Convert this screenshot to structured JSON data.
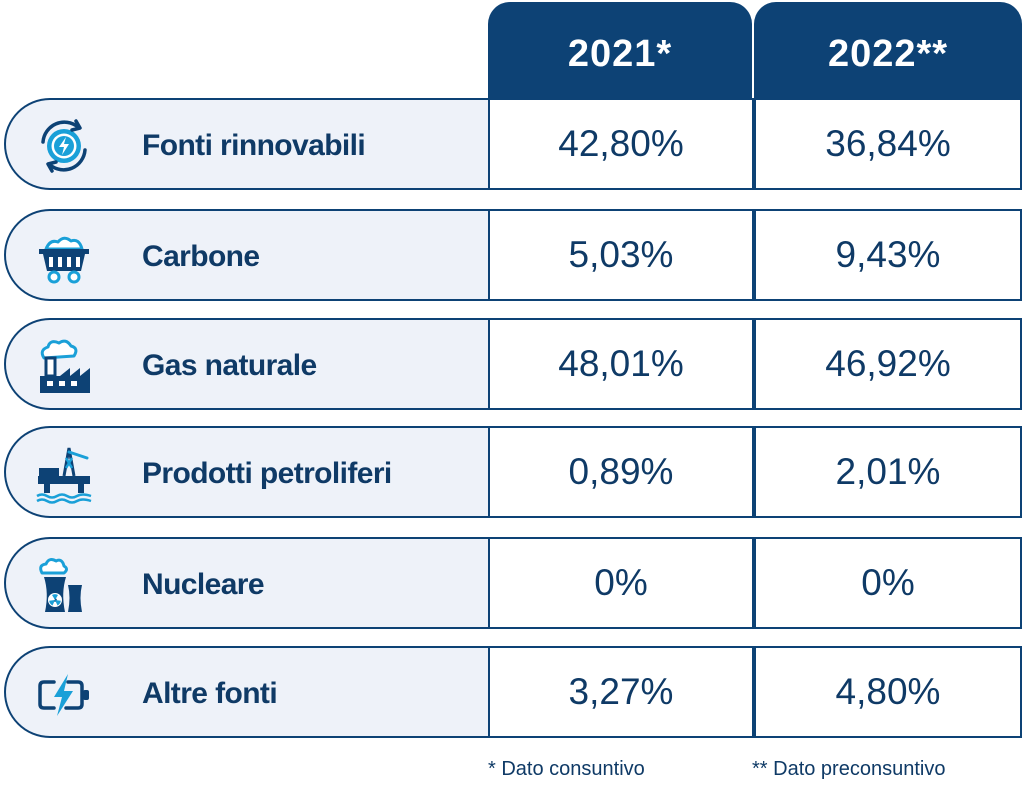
{
  "chart_data": {
    "type": "table",
    "columns": [
      "2021*",
      "2022**"
    ],
    "rows": [
      {
        "label": "Fonti rinnovabili",
        "icon": "renewable-energy-icon",
        "values": [
          "42,80%",
          "36,84%"
        ]
      },
      {
        "label": "Carbone",
        "icon": "coal-cart-icon",
        "values": [
          "5,03%",
          "9,43%"
        ]
      },
      {
        "label": "Gas naturale",
        "icon": "gas-factory-icon",
        "values": [
          "48,01%",
          "46,92%"
        ]
      },
      {
        "label": "Prodotti petroliferi",
        "icon": "oil-platform-icon",
        "values": [
          "0,89%",
          "2,01%"
        ]
      },
      {
        "label": "Nucleare",
        "icon": "nuclear-plant-icon",
        "values": [
          "0%",
          "0%"
        ]
      },
      {
        "label": "Altre fonti",
        "icon": "battery-bolt-icon",
        "values": [
          "3,27%",
          "4,80%"
        ]
      }
    ],
    "footnotes": [
      "* Dato consuntivo",
      "** Dato preconsuntivo"
    ]
  },
  "colors": {
    "header_bg": "#0d4275",
    "text": "#0f3a66",
    "icon_accent": "#1aa0d8",
    "label_bg": "#eef2f9"
  }
}
